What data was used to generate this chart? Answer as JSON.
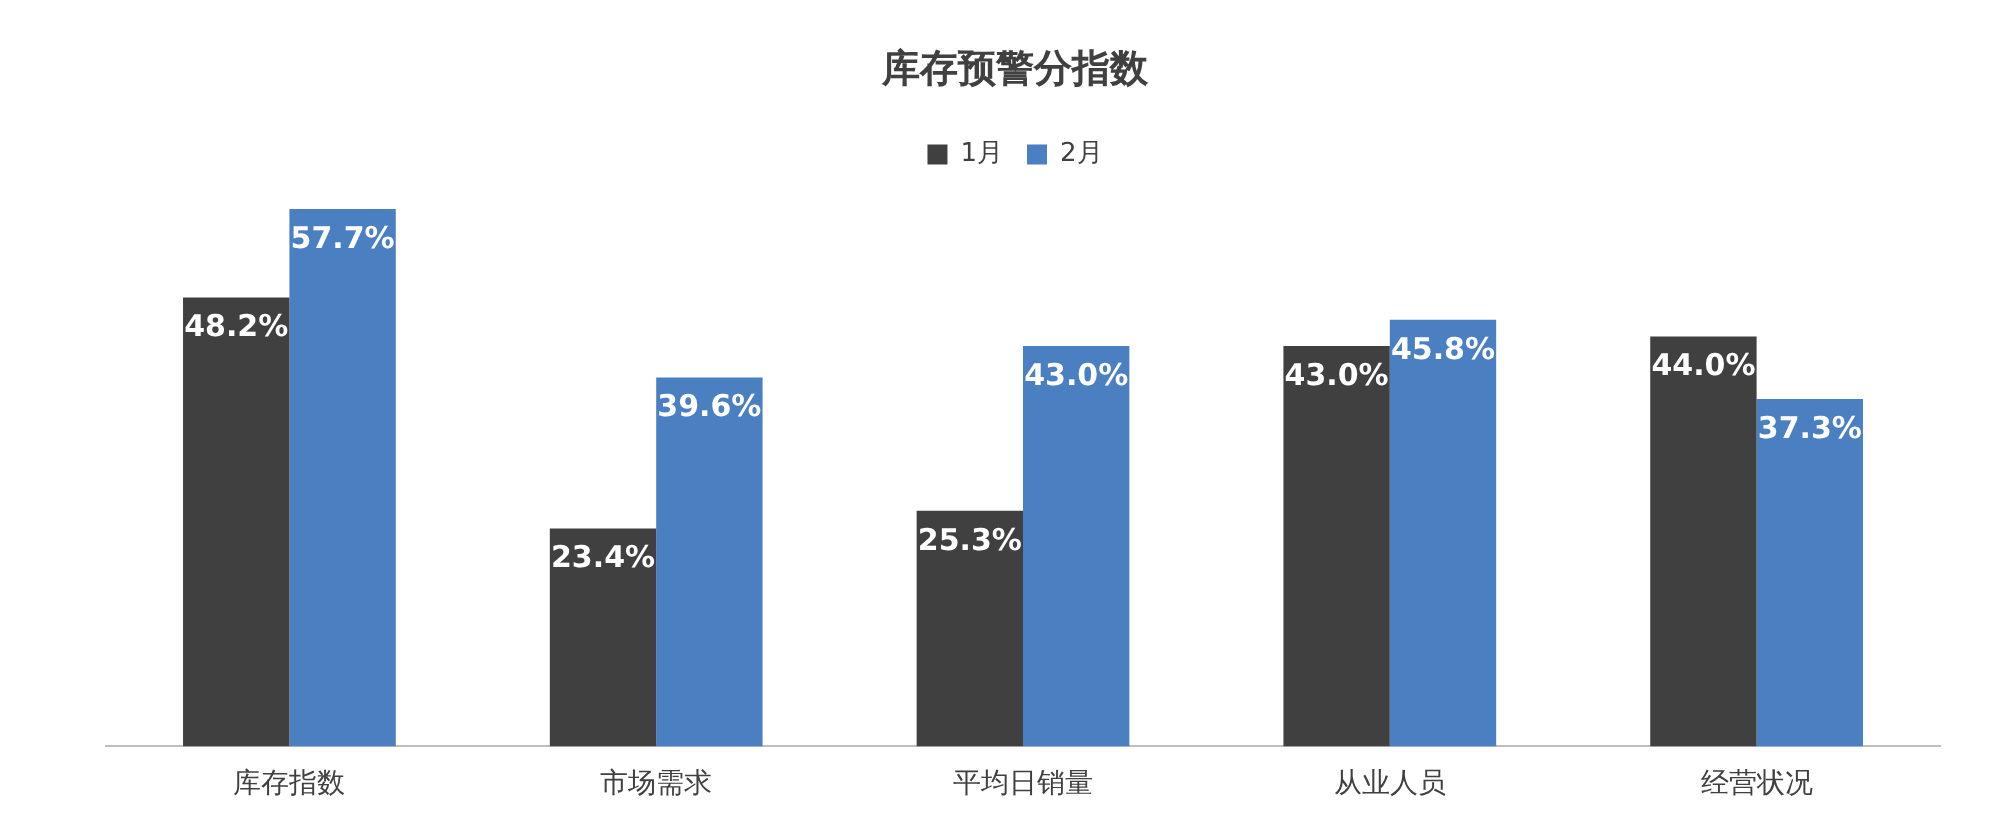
{
  "chart_data": {
    "type": "bar",
    "title": "库存预警分指数",
    "categories": [
      "库存指数",
      "市场需求",
      "平均日销量",
      "从业人员",
      "经营状况"
    ],
    "series": [
      {
        "name": "1月",
        "color": "#404040",
        "values": [
          48.2,
          23.4,
          25.3,
          43.0,
          44.0
        ],
        "value_labels": [
          "48.2%",
          "23.4%",
          "25.3%",
          "43.0%",
          "44.0%"
        ]
      },
      {
        "name": "2月",
        "color": "#4a7fc1",
        "values": [
          57.7,
          39.6,
          43.0,
          45.8,
          37.3
        ],
        "value_labels": [
          "57.7%",
          "39.6%",
          "43.0%",
          "45.8%",
          "37.3%"
        ]
      }
    ],
    "relative": false,
    "legend": "top",
    "grid": false
  }
}
